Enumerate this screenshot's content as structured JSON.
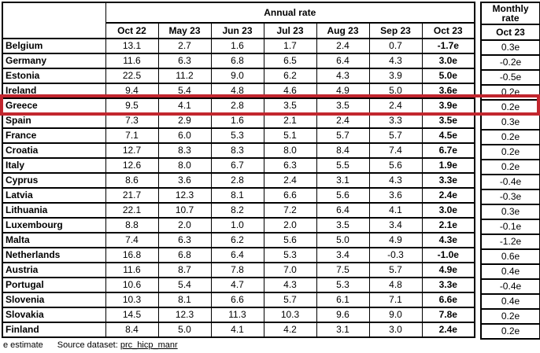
{
  "table": {
    "annual_header": "Annual rate",
    "monthly_header": "Monthly rate",
    "annual_columns": [
      "Oct 22",
      "May 23",
      "Jun 23",
      "Jul 23",
      "Aug 23",
      "Sep 23",
      "Oct 23"
    ],
    "monthly_column": "Oct 23",
    "highlighted_country": "Greece",
    "highlight_color": "#c2262e",
    "rows": [
      {
        "country": "Belgium",
        "annual": [
          "13.1",
          "2.7",
          "1.6",
          "1.7",
          "2.4",
          "0.7",
          "-1.7e"
        ],
        "monthly": "0.3e"
      },
      {
        "country": "Germany",
        "annual": [
          "11.6",
          "6.3",
          "6.8",
          "6.5",
          "6.4",
          "4.3",
          "3.0e"
        ],
        "monthly": "-0.2e"
      },
      {
        "country": "Estonia",
        "annual": [
          "22.5",
          "11.2",
          "9.0",
          "6.2",
          "4.3",
          "3.9",
          "5.0e"
        ],
        "monthly": "-0.5e"
      },
      {
        "country": "Ireland",
        "annual": [
          "9.4",
          "5.4",
          "4.8",
          "4.6",
          "4.9",
          "5.0",
          "3.6e"
        ],
        "monthly": "0.2e"
      },
      {
        "country": "Greece",
        "annual": [
          "9.5",
          "4.1",
          "2.8",
          "3.5",
          "3.5",
          "2.4",
          "3.9e"
        ],
        "monthly": "0.2e"
      },
      {
        "country": "Spain",
        "annual": [
          "7.3",
          "2.9",
          "1.6",
          "2.1",
          "2.4",
          "3.3",
          "3.5e"
        ],
        "monthly": "0.3e"
      },
      {
        "country": "France",
        "annual": [
          "7.1",
          "6.0",
          "5.3",
          "5.1",
          "5.7",
          "5.7",
          "4.5e"
        ],
        "monthly": "0.2e"
      },
      {
        "country": "Croatia",
        "annual": [
          "12.7",
          "8.3",
          "8.3",
          "8.0",
          "8.4",
          "7.4",
          "6.7e"
        ],
        "monthly": "0.2e"
      },
      {
        "country": "Italy",
        "annual": [
          "12.6",
          "8.0",
          "6.7",
          "6.3",
          "5.5",
          "5.6",
          "1.9e"
        ],
        "monthly": "0.2e"
      },
      {
        "country": "Cyprus",
        "annual": [
          "8.6",
          "3.6",
          "2.8",
          "2.4",
          "3.1",
          "4.3",
          "3.3e"
        ],
        "monthly": "-0.4e"
      },
      {
        "country": "Latvia",
        "annual": [
          "21.7",
          "12.3",
          "8.1",
          "6.6",
          "5.6",
          "3.6",
          "2.4e"
        ],
        "monthly": "-0.3e"
      },
      {
        "country": "Lithuania",
        "annual": [
          "22.1",
          "10.7",
          "8.2",
          "7.2",
          "6.4",
          "4.1",
          "3.0e"
        ],
        "monthly": "0.3e"
      },
      {
        "country": "Luxembourg",
        "annual": [
          "8.8",
          "2.0",
          "1.0",
          "2.0",
          "3.5",
          "3.4",
          "2.1e"
        ],
        "monthly": "-0.1e"
      },
      {
        "country": "Malta",
        "annual": [
          "7.4",
          "6.3",
          "6.2",
          "5.6",
          "5.0",
          "4.9",
          "4.3e"
        ],
        "monthly": "-1.2e"
      },
      {
        "country": "Netherlands",
        "annual": [
          "16.8",
          "6.8",
          "6.4",
          "5.3",
          "3.4",
          "-0.3",
          "-1.0e"
        ],
        "monthly": "0.6e"
      },
      {
        "country": "Austria",
        "annual": [
          "11.6",
          "8.7",
          "7.8",
          "7.0",
          "7.5",
          "5.7",
          "4.9e"
        ],
        "monthly": "0.4e"
      },
      {
        "country": "Portugal",
        "annual": [
          "10.6",
          "5.4",
          "4.7",
          "4.3",
          "5.3",
          "4.8",
          "3.3e"
        ],
        "monthly": "-0.4e"
      },
      {
        "country": "Slovenia",
        "annual": [
          "10.3",
          "8.1",
          "6.6",
          "5.7",
          "6.1",
          "7.1",
          "6.6e"
        ],
        "monthly": "0.4e"
      },
      {
        "country": "Slovakia",
        "annual": [
          "14.5",
          "12.3",
          "11.3",
          "10.3",
          "9.6",
          "9.0",
          "7.8e"
        ],
        "monthly": "0.2e"
      },
      {
        "country": "Finland",
        "annual": [
          "8.4",
          "5.0",
          "4.1",
          "4.2",
          "3.1",
          "3.0",
          "2.4e"
        ],
        "monthly": "0.2e"
      }
    ]
  },
  "footer": {
    "estimate_note": "e estimate",
    "source_label": "Source dataset:",
    "source_link": "prc_hicp_manr"
  }
}
